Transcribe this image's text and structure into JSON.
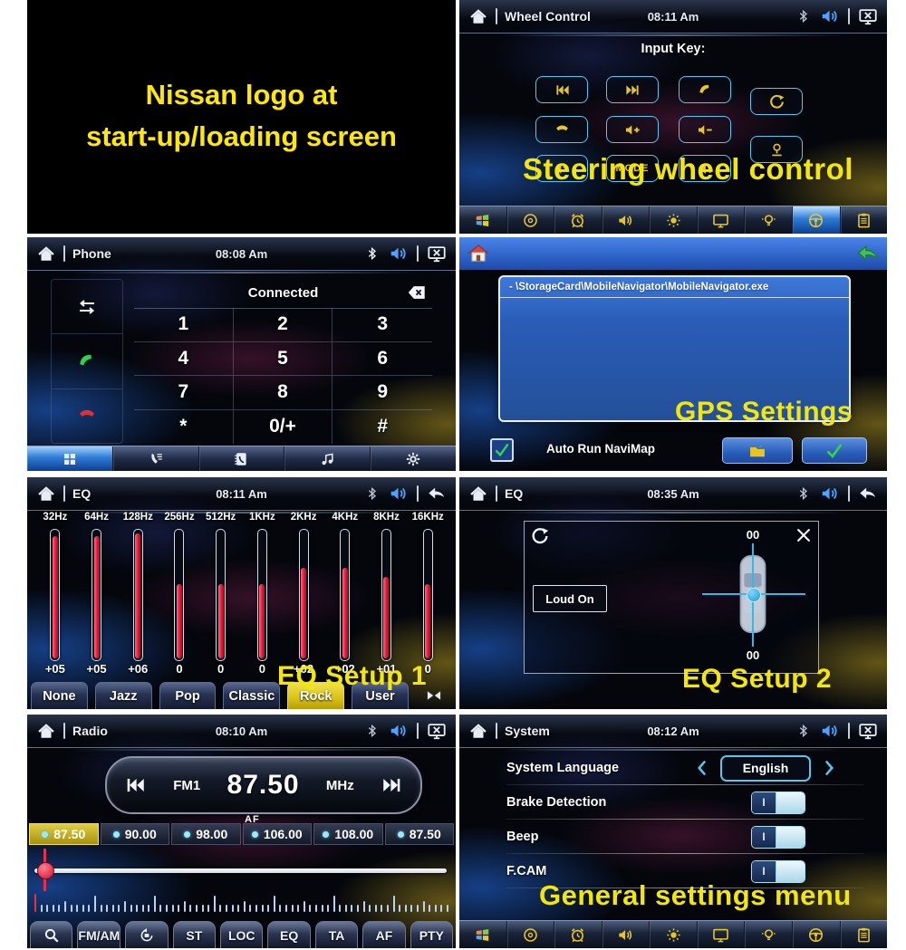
{
  "startup": {
    "line1": "Nissan logo at",
    "line2": "start-up/loading screen"
  },
  "captions": {
    "wheel": "Steering wheel control",
    "gps": "GPS Settings",
    "eq1": "EQ Setup 1",
    "eq2": "EQ Setup 2",
    "system": "General settings menu"
  },
  "colors": {
    "caption_yellow": "#f2e60a",
    "accent_cyan": "#56c8f0",
    "icon_yellow": "#e9c522",
    "volume_blue": "#4da3ff",
    "eq_red": "#e01538",
    "highlight_blue": "#2f7bd6"
  },
  "wheel": {
    "title": "Wheel Control",
    "time": "08:11 Am",
    "input_key_label": "Input Key:",
    "buttons_left": [
      [
        {
          "icon": "prev-track"
        },
        {
          "icon": "next-track"
        },
        {
          "icon": "answer-call"
        }
      ],
      [
        {
          "icon": "end-call"
        },
        {
          "icon": "volume-plus"
        },
        {
          "icon": "volume-minus"
        }
      ],
      [
        {
          "icon": "mute"
        },
        {
          "label": "MODE"
        },
        {
          "icon": "speaker"
        }
      ]
    ],
    "buttons_right": [
      {
        "icon": "reset"
      },
      {
        "icon": "mic"
      }
    ],
    "taskbar": [
      "windows",
      "disc",
      "alarm",
      "volume",
      "brightness",
      "display",
      "dimmer",
      "steering-wheel",
      "clipboard"
    ],
    "taskbar_active": "steering-wheel"
  },
  "phone": {
    "title": "Phone",
    "time": "08:08 Am",
    "status": "Connected",
    "keys": [
      "1",
      "2",
      "3",
      "4",
      "5",
      "6",
      "7",
      "8",
      "9",
      "*",
      "0/+",
      "#"
    ],
    "side_buttons": [
      {
        "icon": "transfer",
        "color": "white"
      },
      {
        "icon": "answer-call",
        "color": "green"
      },
      {
        "icon": "end-call",
        "color": "red"
      }
    ],
    "tabs": [
      "keypad",
      "calls",
      "phonebook",
      "music",
      "settings"
    ],
    "active_tab": "keypad"
  },
  "gps": {
    "path": "- \\StorageCard\\MobileNavigator\\MobileNavigator.exe",
    "auto_run_label": "Auto Run NaviMap",
    "auto_run_checked": true
  },
  "eq1": {
    "title": "EQ",
    "time": "08:11 Am",
    "frequencies": [
      "32Hz",
      "64Hz",
      "128Hz",
      "256Hz",
      "512Hz",
      "1KHz",
      "2KHz",
      "4KHz",
      "8KHz",
      "16KHz"
    ],
    "values": [
      "+05",
      "+05",
      "+06",
      "0",
      "0",
      "0",
      "+02",
      "+02",
      "+01",
      "0"
    ],
    "fill_top_percent": [
      5,
      5,
      3,
      42,
      42,
      42,
      29,
      29,
      36,
      42
    ],
    "presets": [
      "None",
      "Jazz",
      "Pop",
      "Classic",
      "Rock",
      "User"
    ],
    "active_preset": "Rock"
  },
  "eq2": {
    "title": "EQ",
    "time": "08:35 Am",
    "loud_label": "Loud On",
    "balance_top": "00",
    "balance_bottom": "00"
  },
  "radio": {
    "title": "Radio",
    "time": "08:10 Am",
    "band": "FM1",
    "frequency": "87.50",
    "unit": "MHz",
    "af_label": "AF",
    "presets": [
      "87.50",
      "90.00",
      "98.00",
      "106.00",
      "108.00",
      "87.50"
    ],
    "active_preset_index": 0,
    "buttons": [
      {
        "icon": "search"
      },
      {
        "label": "FM/AM"
      },
      {
        "icon": "scan"
      },
      {
        "label": "ST"
      },
      {
        "label": "LOC"
      },
      {
        "label": "EQ"
      },
      {
        "label": "TA"
      },
      {
        "label": "AF"
      },
      {
        "label": "PTY"
      }
    ]
  },
  "system": {
    "title": "System",
    "time": "08:12 Am",
    "rows": [
      {
        "label": "System Language",
        "type": "selector",
        "value": "English"
      },
      {
        "label": "Brake Detection",
        "type": "toggle",
        "on": true
      },
      {
        "label": "Beep",
        "type": "toggle",
        "on": true
      },
      {
        "label": "F.CAM",
        "type": "toggle",
        "on": true
      }
    ],
    "taskbar": [
      "windows",
      "disc",
      "alarm",
      "volume",
      "brightness",
      "display",
      "dimmer",
      "steering-wheel",
      "clipboard"
    ]
  }
}
